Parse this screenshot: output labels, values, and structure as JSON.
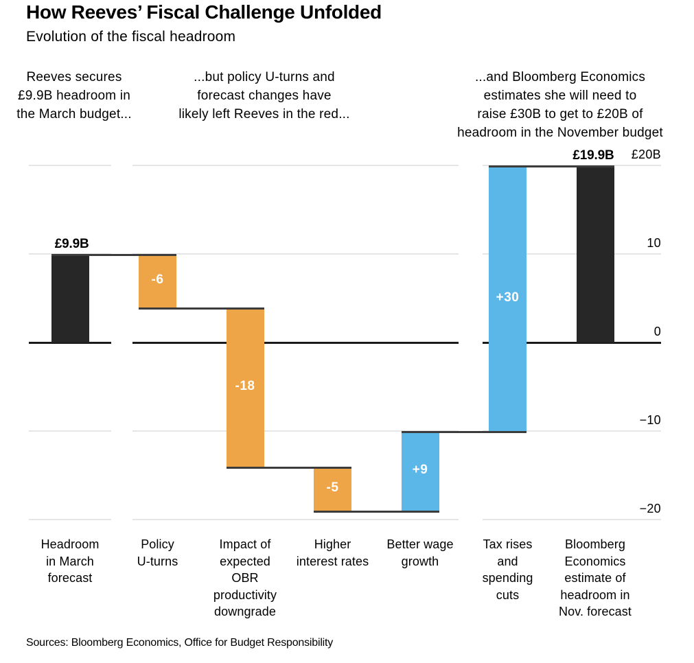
{
  "page": {
    "title": "How Reeves’ Fiscal Challenge Unfolded",
    "subtitle": "Evolution of the fiscal headroom",
    "source": "Sources: Bloomberg Economics, Office for Budget Responsibility"
  },
  "annotations": [
    {
      "id": "march-budget",
      "lines": [
        "Reeves secures",
        "£9.9B headroom in",
        "the March budget..."
      ]
    },
    {
      "id": "policy-u-turns",
      "lines": [
        "...but policy U-turns and",
        "forecast changes have",
        "likely left Reeves in the red..."
      ]
    },
    {
      "id": "november-budget",
      "lines": [
        "...and Bloomberg Economics",
        "estimates she will need to",
        "raise £30B to get to £20B of",
        "headroom in the November budget"
      ]
    }
  ],
  "chart_data": {
    "type": "bar",
    "subtype": "waterfall",
    "title": "How Reeves’ Fiscal Challenge Unfolded",
    "subtitle": "Evolution of the fiscal headroom",
    "unit": "£B",
    "ylim": [
      -20,
      20
    ],
    "grid": true,
    "legend": "none",
    "yticks": [
      {
        "value": 20,
        "label": "£20B"
      },
      {
        "value": 10,
        "label": "10"
      },
      {
        "value": 0,
        "label": "0"
      },
      {
        "value": -10,
        "label": "−10"
      },
      {
        "value": -20,
        "label": "−20"
      }
    ],
    "colors": {
      "increase": "#5CB7E9",
      "decrease": "#EDA547",
      "total": "#272727",
      "zero_line": "#1b1b1b",
      "connector": "#3c3c3c",
      "gridline": "#e5e5e5",
      "bar_label_text": "#ffffff"
    },
    "bars": [
      {
        "category": "Headroom in March forecast",
        "category_lines": [
          "Headroom",
          "in March",
          "forecast"
        ],
        "role": "total",
        "start": 0,
        "end": 9.9,
        "value": 9.9,
        "label": "£9.9B",
        "label_position": "above"
      },
      {
        "category": "Policy U-turns",
        "category_lines": [
          "Policy",
          "U-turns"
        ],
        "role": "decrease",
        "start": 9.9,
        "end": 3.9,
        "value": -6,
        "label": "-6",
        "label_position": "inside"
      },
      {
        "category": "Impact of expected OBR productivity downgrade",
        "category_lines": [
          "Impact of",
          "expected",
          "OBR",
          "productivity",
          "downgrade"
        ],
        "role": "decrease",
        "start": 3.9,
        "end": -14.1,
        "value": -18,
        "label": "-18",
        "label_position": "inside"
      },
      {
        "category": "Higher interest rates",
        "category_lines": [
          "Higher",
          "interest rates"
        ],
        "role": "decrease",
        "start": -14.1,
        "end": -19.1,
        "value": -5,
        "label": "-5",
        "label_position": "inside"
      },
      {
        "category": "Better wage growth",
        "category_lines": [
          "Better wage",
          "growth"
        ],
        "role": "increase",
        "start": -19.1,
        "end": -10.1,
        "value": 9,
        "label": "+9",
        "label_position": "inside"
      },
      {
        "category": "Tax rises and spending cuts",
        "category_lines": [
          "Tax rises",
          "and",
          "spending",
          "cuts"
        ],
        "role": "increase",
        "start": -10.1,
        "end": 19.9,
        "value": 30,
        "label": "+30",
        "label_position": "inside"
      },
      {
        "category": "Bloomberg Economics estimate of headroom in Nov. forecast",
        "category_lines": [
          "Bloomberg",
          "Economics",
          "estimate of",
          "headroom in",
          "Nov. forecast"
        ],
        "role": "total",
        "start": 0,
        "end": 19.9,
        "value": 19.9,
        "label": "£19.9B",
        "label_position": "above"
      }
    ]
  }
}
